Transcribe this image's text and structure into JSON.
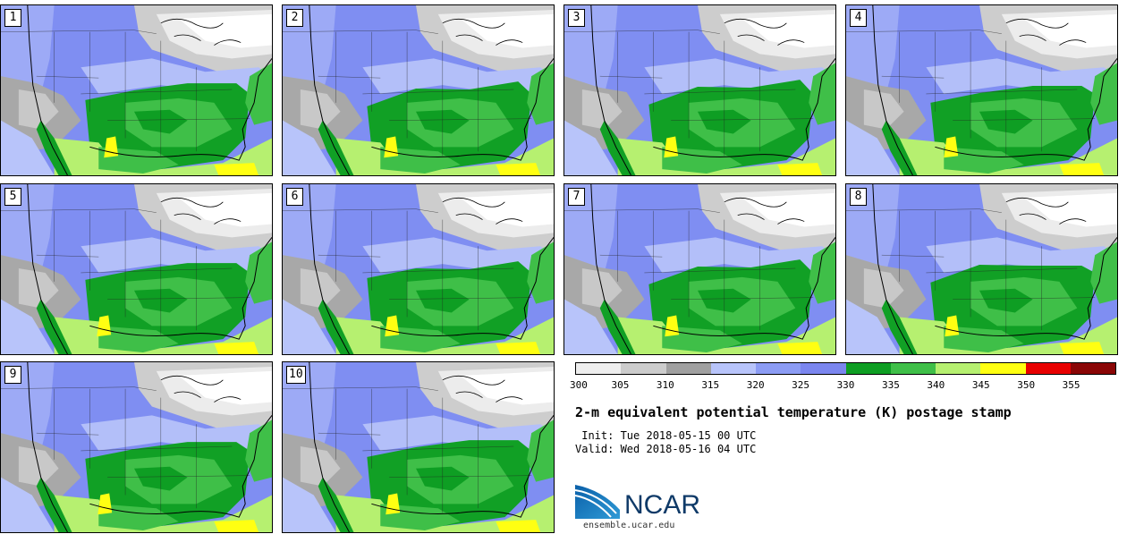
{
  "panels": [
    {
      "label": "1"
    },
    {
      "label": "2"
    },
    {
      "label": "3"
    },
    {
      "label": "4"
    },
    {
      "label": "5"
    },
    {
      "label": "6"
    },
    {
      "label": "7"
    },
    {
      "label": "8"
    },
    {
      "label": "9"
    },
    {
      "label": "10"
    }
  ],
  "colorbar": {
    "colors": [
      "#eeeeee",
      "#cccccc",
      "#a0a0a0",
      "#b8c4fa",
      "#8c9cf4",
      "#7b86ef",
      "#0e9e23",
      "#3fbf48",
      "#b6f070",
      "#ffff12",
      "#e80000",
      "#8a0606"
    ],
    "tick_labels": [
      "300",
      "305",
      "310",
      "315",
      "320",
      "325",
      "330",
      "335",
      "340",
      "345",
      "350",
      "355"
    ]
  },
  "title": "2-m equivalent potential temperature (K) postage stamp",
  "init": " Init: Tue 2018-05-15 00 UTC",
  "valid": "Valid: Wed 2018-05-16 04 UTC",
  "logo": {
    "text": "NCAR",
    "url": "ensemble.ucar.edu"
  }
}
